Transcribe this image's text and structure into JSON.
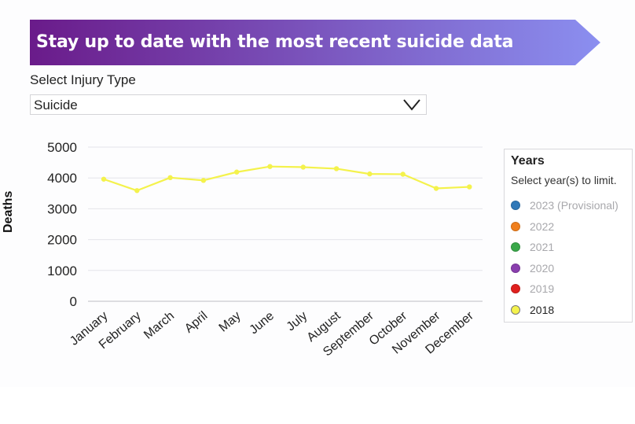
{
  "banner": {
    "title": "Stay up to date with the most recent suicide data",
    "gradient_start": "#6a1b8a",
    "gradient_end": "#8b8ff0"
  },
  "filter": {
    "label": "Select Injury Type",
    "selected": "Suicide",
    "chevron_icon": "chevron-down-icon"
  },
  "legend": {
    "title": "Years",
    "subtitle": "Select year(s) to limit.",
    "items": [
      {
        "label": "2023 (Provisional)",
        "color": "#2f78b8",
        "active": false
      },
      {
        "label": "2022",
        "color": "#f07f1c",
        "active": false
      },
      {
        "label": "2021",
        "color": "#3aa84a",
        "active": false
      },
      {
        "label": "2020",
        "color": "#8a3fae",
        "active": false
      },
      {
        "label": "2019",
        "color": "#e0201e",
        "active": false
      },
      {
        "label": "2018",
        "color": "#f4f24c",
        "active": true
      }
    ]
  },
  "chart_data": {
    "type": "line",
    "title": "",
    "xlabel": "",
    "ylabel": "Deaths",
    "ylim": [
      0,
      5000
    ],
    "yticks": [
      0,
      1000,
      2000,
      3000,
      4000,
      5000
    ],
    "grid": true,
    "categories": [
      "January",
      "February",
      "March",
      "April",
      "May",
      "June",
      "July",
      "August",
      "September",
      "October",
      "November",
      "December"
    ],
    "series": [
      {
        "name": "2018",
        "color": "#f4f24c",
        "values": [
          3960,
          3590,
          4010,
          3920,
          4190,
          4370,
          4350,
          4300,
          4130,
          4120,
          3660,
          3710
        ]
      }
    ]
  }
}
